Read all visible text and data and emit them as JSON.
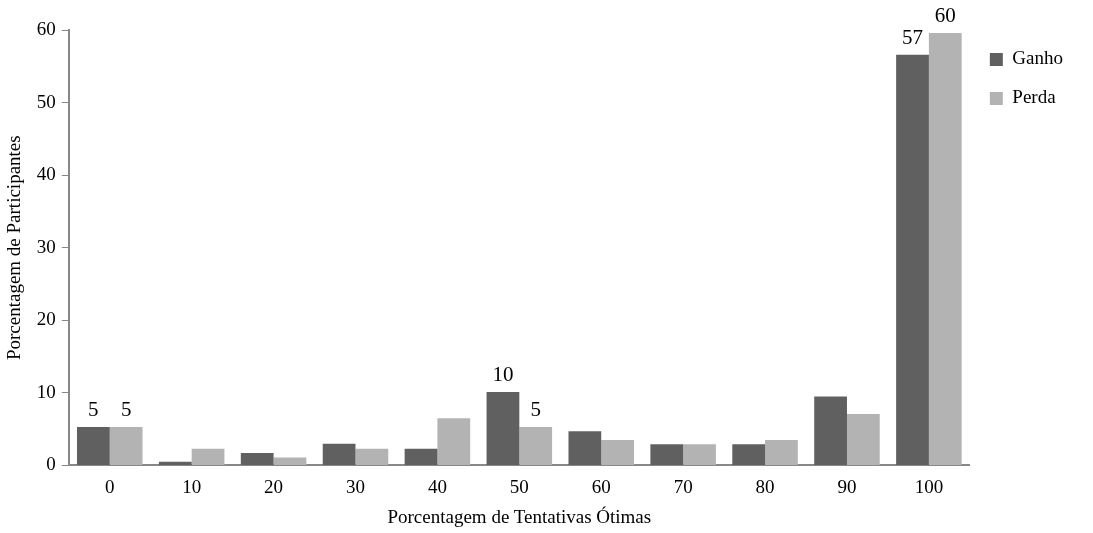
{
  "chart_data": {
    "type": "bar",
    "xlabel": "Porcentagem de Tentativas Ótimas",
    "ylabel": "Porcentagem de Participantes",
    "categories": [
      "0",
      "10",
      "20",
      "30",
      "40",
      "50",
      "60",
      "70",
      "80",
      "90",
      "100"
    ],
    "series": [
      {
        "name": "Ganho",
        "color": "#606060",
        "values": [
          5.3,
          0.5,
          1.7,
          3.0,
          2.3,
          10.1,
          4.7,
          2.9,
          2.9,
          9.5,
          56.6
        ],
        "value_labels": [
          "5",
          null,
          null,
          null,
          null,
          "10",
          null,
          null,
          null,
          null,
          "57"
        ]
      },
      {
        "name": "Perda",
        "color": "#b3b3b3",
        "values": [
          5.3,
          2.3,
          1.1,
          2.3,
          6.5,
          5.3,
          3.5,
          2.9,
          3.5,
          7.1,
          59.6
        ],
        "value_labels": [
          "5",
          null,
          null,
          null,
          null,
          "5",
          null,
          null,
          null,
          null,
          "60"
        ]
      }
    ],
    "ylim": [
      0,
      60
    ],
    "yticks": [
      0,
      10,
      20,
      30,
      40,
      50,
      60
    ],
    "grid": false,
    "legend": "right"
  }
}
